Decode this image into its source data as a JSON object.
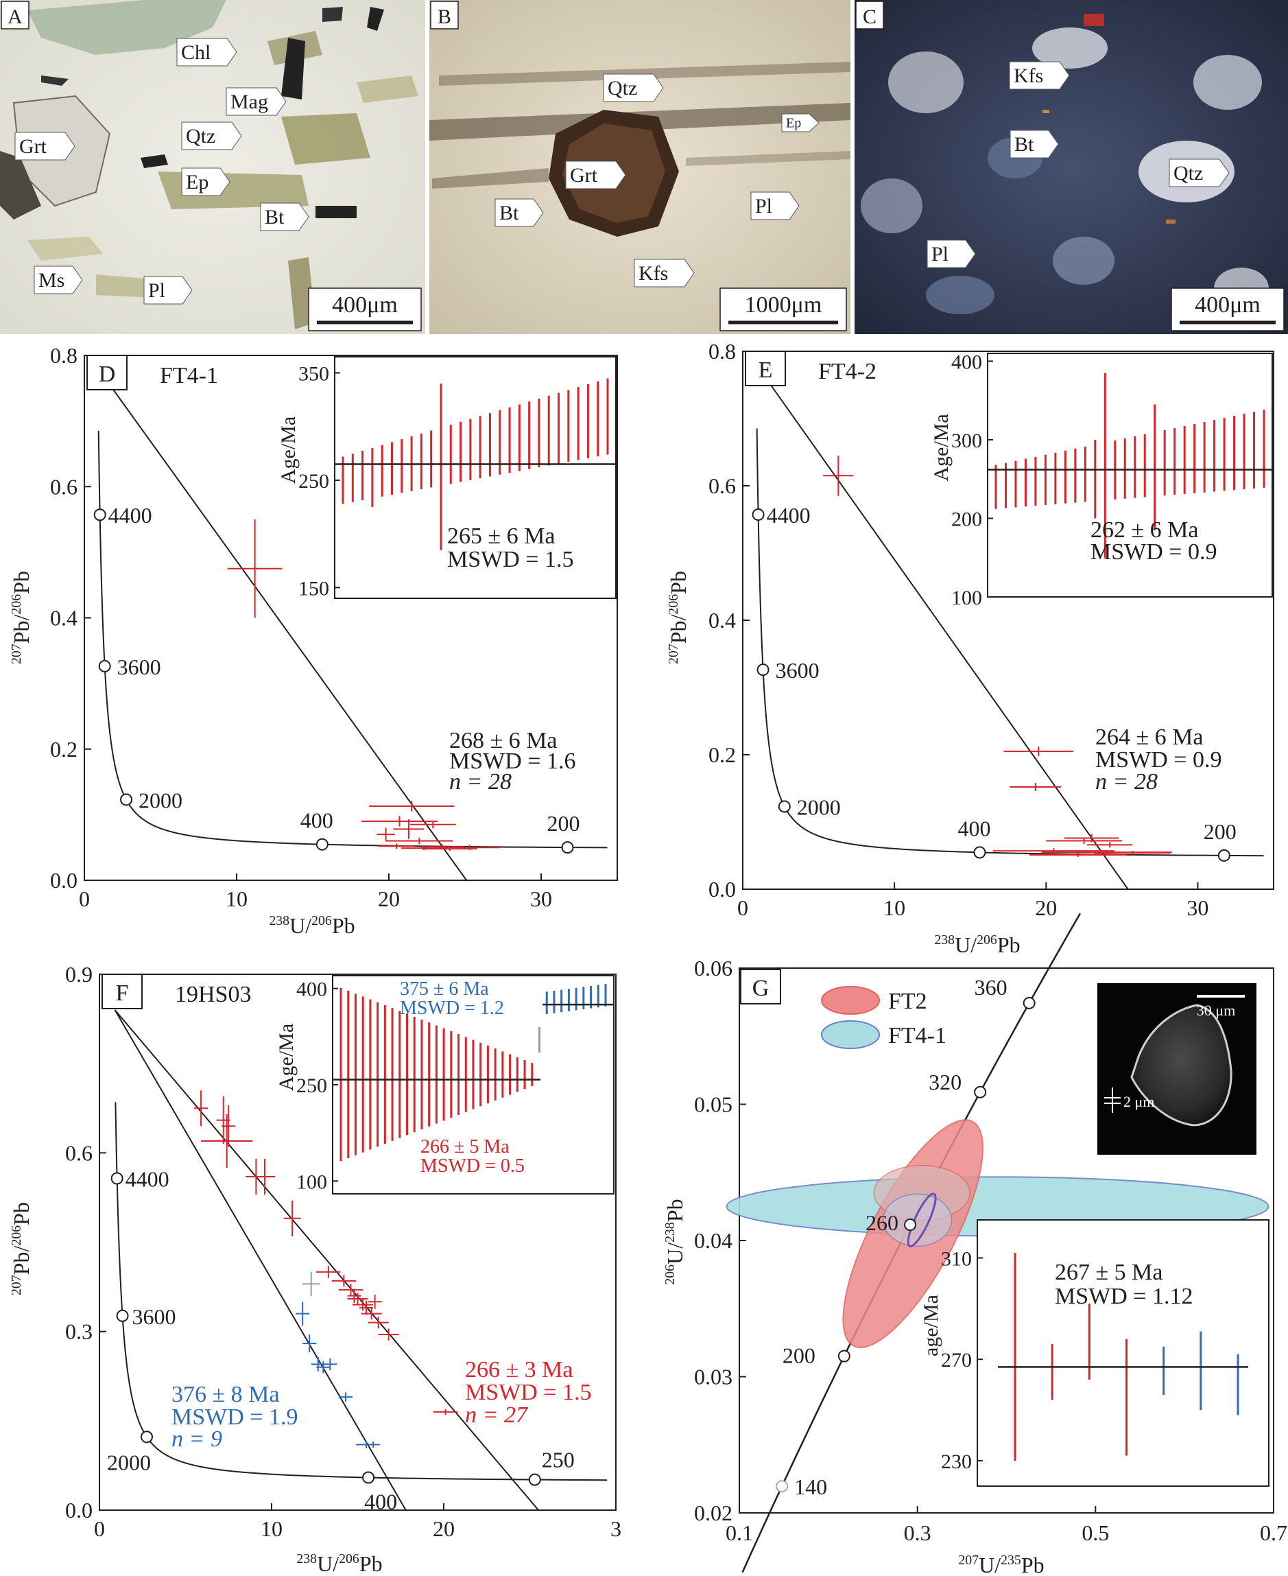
{
  "photos": [
    {
      "letter": "A",
      "scale": "400μm",
      "labels": [
        {
          "text": "Chl"
        },
        {
          "text": "Mag"
        },
        {
          "text": "Grt"
        },
        {
          "text": "Qtz"
        },
        {
          "text": "Ep"
        },
        {
          "text": "Bt"
        },
        {
          "text": "Ms"
        },
        {
          "text": "Pl"
        }
      ]
    },
    {
      "letter": "B",
      "scale": "1000μm",
      "labels": [
        {
          "text": "Qtz"
        },
        {
          "text": "Ep"
        },
        {
          "text": "Grt"
        },
        {
          "text": "Bt"
        },
        {
          "text": "Pl"
        },
        {
          "text": "Kfs"
        }
      ]
    },
    {
      "letter": "C",
      "scale": "400μm",
      "labels": [
        {
          "text": "Kfs"
        },
        {
          "text": "Bt"
        },
        {
          "text": "Qtz"
        },
        {
          "text": "Pl"
        }
      ]
    }
  ],
  "panel_d": {
    "letter": "D",
    "sample": "FT4-1",
    "xlabel_tex": "238U/206Pb",
    "ylabel_tex": "207Pb/206Pb",
    "xticks": [
      "0",
      "10",
      "20",
      "30"
    ],
    "yticks": [
      "0.0",
      "0.2",
      "0.4",
      "0.6",
      "0.8"
    ],
    "concordia_labels": [
      "4400",
      "3600",
      "2000",
      "400",
      "200"
    ],
    "result": {
      "age": "268 ± 6 Ma",
      "mswd": "MSWD = 1.6",
      "n": "n = 28"
    },
    "inset": {
      "ylabel": "Age/Ma",
      "yticks": [
        "350",
        "250",
        "150"
      ],
      "age": "265 ± 6 Ma",
      "mswd": "MSWD = 1.5"
    }
  },
  "panel_e": {
    "letter": "E",
    "sample": "FT4-2",
    "xticks": [
      "0",
      "10",
      "20",
      "30"
    ],
    "yticks": [
      "0.0",
      "0.2",
      "0.4",
      "0.6",
      "0.8"
    ],
    "concordia_labels": [
      "4400",
      "3600",
      "2000",
      "400",
      "200"
    ],
    "result": {
      "age": "264 ± 6 Ma",
      "mswd": "MSWD = 0.9",
      "n": "n = 28"
    },
    "inset": {
      "ylabel": "Age/Ma",
      "yticks": [
        "400",
        "300",
        "200",
        "100"
      ],
      "age": "262 ± 6 Ma",
      "mswd": "MSWD = 0.9"
    }
  },
  "panel_f": {
    "letter": "F",
    "sample": "19HS03",
    "xticks": [
      "0",
      "10",
      "20",
      "3"
    ],
    "yticks": [
      "0.0",
      "0.3",
      "0.6",
      "0.9"
    ],
    "concordia_labels": [
      "4400",
      "3600",
      "2000",
      "400",
      "250"
    ],
    "result_red": {
      "age": "266 ± 3 Ma",
      "mswd": "MSWD = 1.5",
      "n": "n = 27"
    },
    "result_blue": {
      "age": "376 ± 8 Ma",
      "mswd": "MSWD = 1.9",
      "n": "n = 9"
    },
    "inset": {
      "ylabel": "Age/Ma",
      "yticks": [
        "400",
        "250",
        "100"
      ],
      "blue_age": "375 ± 6 Ma",
      "blue_mswd": "MSWD = 1.2",
      "red_age": "266 ± 5 Ma",
      "red_mswd": "MSWD = 0.5"
    }
  },
  "panel_g": {
    "letter": "G",
    "xlabel_tex": "207U/235Pb",
    "ylabel_tex": "206U/238Pb",
    "xticks": [
      "0.1",
      "0.3",
      "0.5",
      "0.7"
    ],
    "yticks": [
      "0.02",
      "0.03",
      "0.04",
      "0.05",
      "0.06"
    ],
    "concordia_labels": [
      "360",
      "320",
      "260",
      "200",
      "140"
    ],
    "legend": [
      "FT2",
      "FT4-1"
    ],
    "cl_scale": "30 μm",
    "cl_thickness": "2 μm",
    "inset": {
      "ylabel": "age/Ma",
      "yticks": [
        "310",
        "270",
        "230"
      ],
      "age": "267 ± 5 Ma",
      "mswd": "MSWD = 1.12"
    }
  },
  "colors": {
    "red": "#d6262c",
    "blue": "#2e6db4",
    "grey": "#9d9d9d",
    "ft2_fill": "#ee8a8a",
    "ft41_fill": "#a9dde2"
  }
}
